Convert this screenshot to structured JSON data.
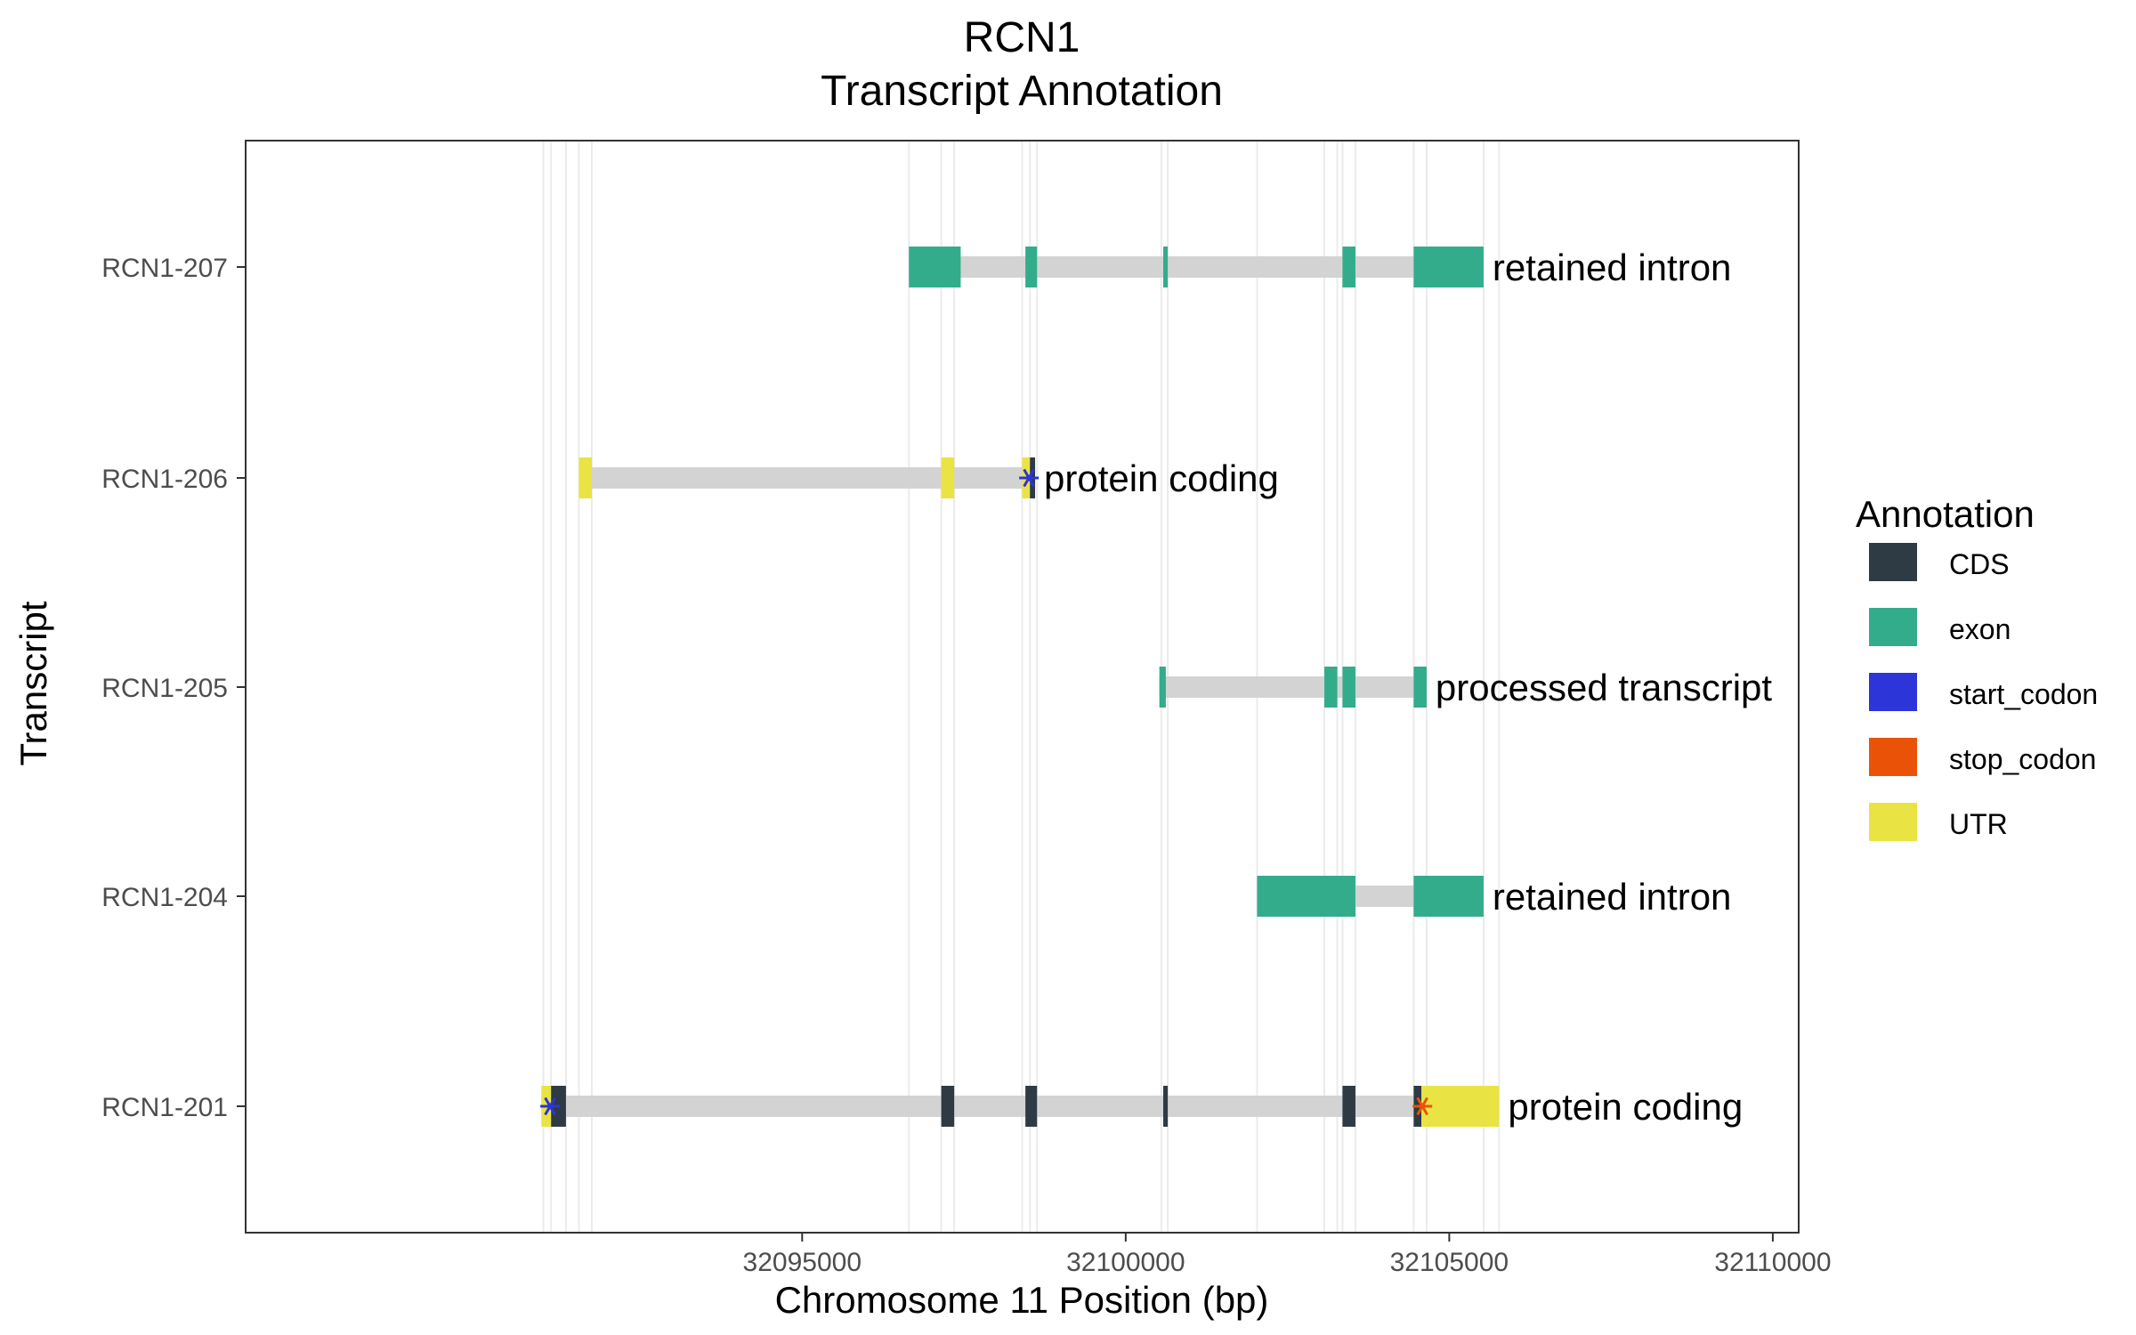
{
  "chart_data": {
    "type": "gene-track",
    "title": "RCN1",
    "subtitle": "Transcript Annotation",
    "xlabel": "Chromosome 11 Position (bp)",
    "ylabel": "Transcript",
    "xlim": [
      32086400,
      32110400
    ],
    "x_ticks": [
      32095000,
      32100000,
      32105000,
      32110000
    ],
    "x_tick_labels": [
      "32095000",
      "32100000",
      "32105000",
      "32110000"
    ],
    "grid": true,
    "legend": {
      "title": "Annotation",
      "position": "right",
      "entries": [
        {
          "label": "CDS",
          "color": "#2e3a44"
        },
        {
          "label": "exon",
          "color": "#33ac8c"
        },
        {
          "label": "start_codon",
          "color": "#2b35d8"
        },
        {
          "label": "stop_codon",
          "color": "#ea5307"
        },
        {
          "label": "UTR",
          "color": "#e9e343"
        }
      ]
    },
    "intron_color": "#d3d3d3",
    "transcripts": [
      {
        "name": "RCN1-207",
        "biotype": "retained intron",
        "span": [
          32096650,
          32105530
        ],
        "features": [
          {
            "type": "exon",
            "start": 32096650,
            "end": 32097450
          },
          {
            "type": "exon",
            "start": 32098450,
            "end": 32098630
          },
          {
            "type": "exon",
            "start": 32100580,
            "end": 32100650
          },
          {
            "type": "exon",
            "start": 32103350,
            "end": 32103550
          },
          {
            "type": "exon",
            "start": 32104450,
            "end": 32105530
          }
        ]
      },
      {
        "name": "RCN1-206",
        "biotype": "protein coding",
        "span": [
          32091550,
          32098600
        ],
        "features": [
          {
            "type": "UTR",
            "start": 32091550,
            "end": 32091750
          },
          {
            "type": "UTR",
            "start": 32097150,
            "end": 32097350
          },
          {
            "type": "UTR",
            "start": 32098400,
            "end": 32098520
          },
          {
            "type": "CDS",
            "start": 32098520,
            "end": 32098600
          },
          {
            "type": "start_codon",
            "start": 32098490,
            "end": 32098520
          }
        ]
      },
      {
        "name": "RCN1-205",
        "biotype": "processed transcript",
        "span": [
          32100520,
          32104650
        ],
        "features": [
          {
            "type": "exon",
            "start": 32100520,
            "end": 32100620
          },
          {
            "type": "exon",
            "start": 32103070,
            "end": 32103270
          },
          {
            "type": "exon",
            "start": 32103350,
            "end": 32103550
          },
          {
            "type": "exon",
            "start": 32104450,
            "end": 32104650
          }
        ]
      },
      {
        "name": "RCN1-204",
        "biotype": "retained intron",
        "span": [
          32102030,
          32105530
        ],
        "features": [
          {
            "type": "exon",
            "start": 32102030,
            "end": 32103550
          },
          {
            "type": "exon",
            "start": 32104450,
            "end": 32105530
          }
        ]
      },
      {
        "name": "RCN1-201",
        "biotype": "protein coding",
        "span": [
          32090970,
          32105770
        ],
        "features": [
          {
            "type": "UTR",
            "start": 32090970,
            "end": 32091120
          },
          {
            "type": "CDS",
            "start": 32091120,
            "end": 32091350
          },
          {
            "type": "CDS",
            "start": 32097150,
            "end": 32097350
          },
          {
            "type": "CDS",
            "start": 32098450,
            "end": 32098630
          },
          {
            "type": "CDS",
            "start": 32100580,
            "end": 32100650
          },
          {
            "type": "CDS",
            "start": 32103350,
            "end": 32103550
          },
          {
            "type": "CDS",
            "start": 32104450,
            "end": 32104570
          },
          {
            "type": "UTR",
            "start": 32104570,
            "end": 32105770
          },
          {
            "type": "start_codon",
            "start": 32091090,
            "end": 32091120
          },
          {
            "type": "stop_codon",
            "start": 32104570,
            "end": 32104600
          }
        ]
      }
    ],
    "vertical_guides": [
      32091000,
      32091120,
      32091350,
      32091550,
      32091750,
      32096650,
      32097150,
      32097350,
      32098400,
      32098520,
      32098630,
      32100550,
      32100650,
      32102030,
      32103070,
      32103270,
      32103350,
      32103550,
      32104450,
      32104650,
      32105530,
      32105770
    ]
  }
}
